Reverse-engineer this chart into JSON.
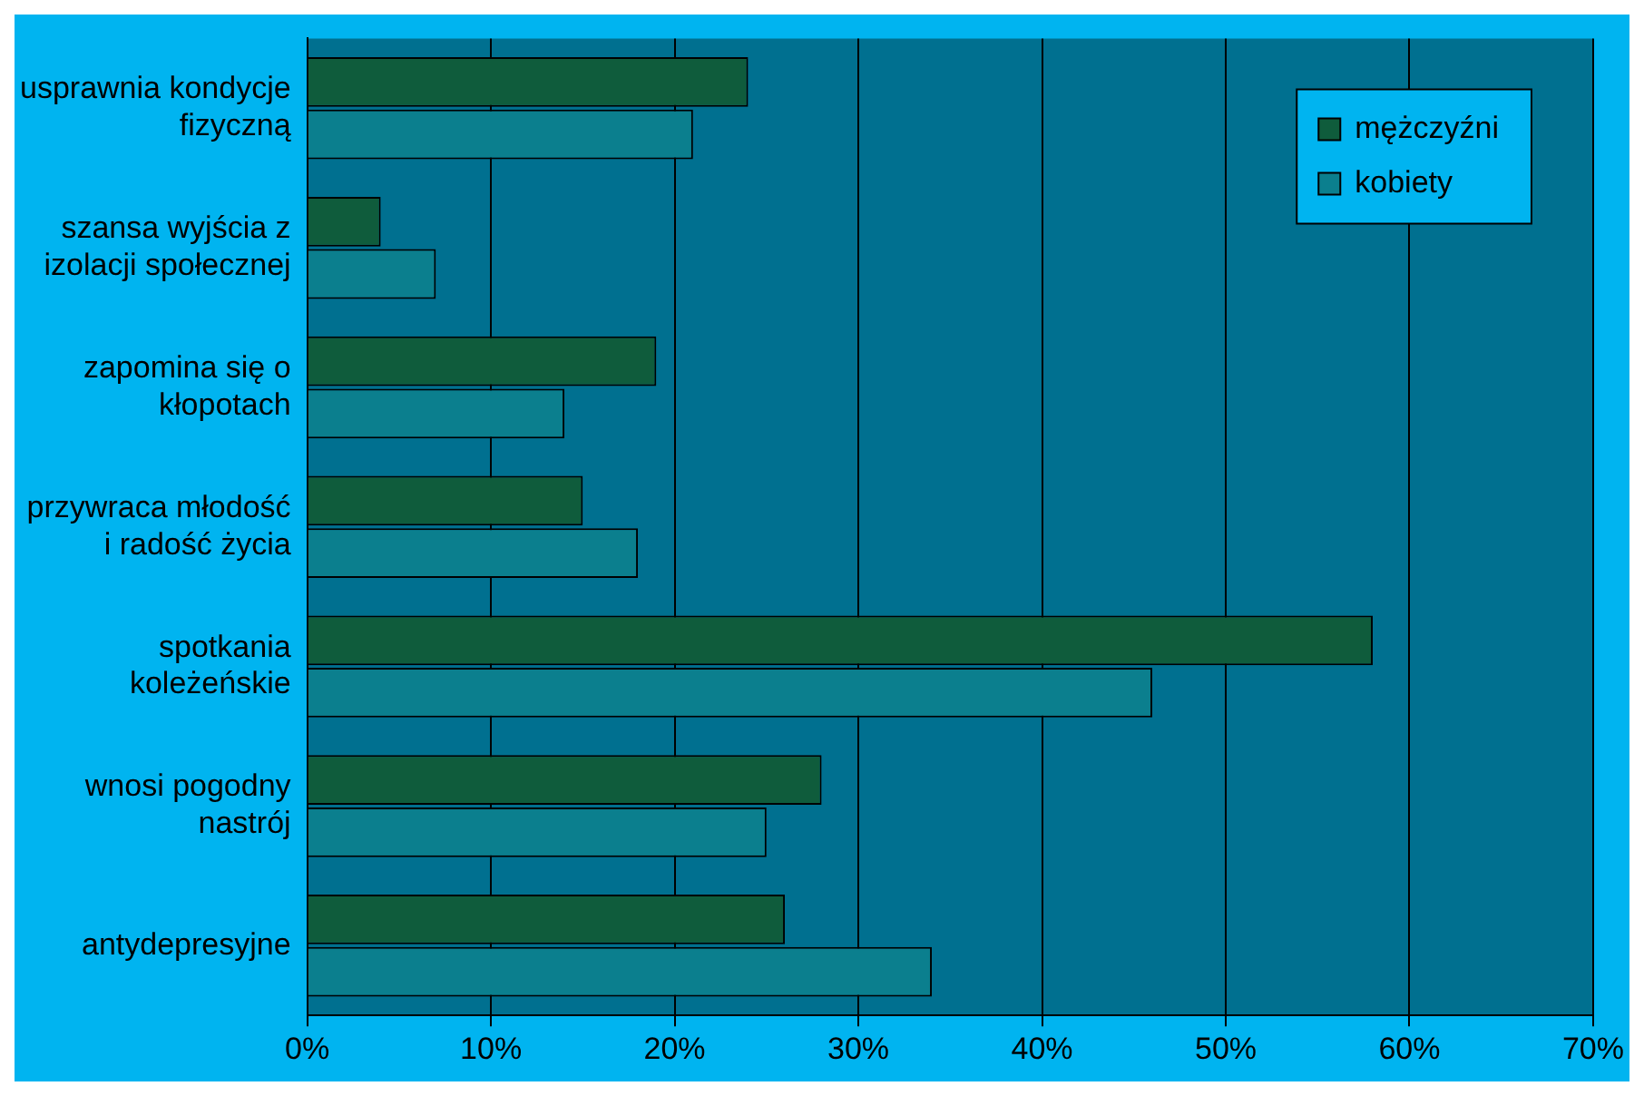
{
  "chart_data": {
    "type": "bar",
    "orientation": "horizontal",
    "categories": [
      "usprawnia kondycje\nfizyczną",
      "szansa wyjścia z\nizolacji społecznej",
      "zapomina się o\nkłopotach",
      "przywraca młodość\ni radość życia",
      "spotkania\nkoleżeńskie",
      "wnosi pogodny\nnastrój",
      "antydepresyjne"
    ],
    "series": [
      {
        "name": "mężczyźni",
        "color": "#0f5c3c",
        "values": [
          24,
          4,
          19,
          15,
          58,
          28,
          26
        ]
      },
      {
        "name": "kobiety",
        "color": "#0b7f8e",
        "values": [
          21,
          7,
          14,
          18,
          46,
          25,
          34
        ]
      }
    ],
    "xlim": [
      0,
      70
    ],
    "xticks": [
      {
        "value": 0,
        "label": "0%"
      },
      {
        "value": 10,
        "label": "10%"
      },
      {
        "value": 20,
        "label": "20%"
      },
      {
        "value": 30,
        "label": "30%"
      },
      {
        "value": 40,
        "label": "40%"
      },
      {
        "value": 50,
        "label": "50%"
      },
      {
        "value": 60,
        "label": "60%"
      },
      {
        "value": 70,
        "label": "70%"
      }
    ],
    "grid": "x",
    "legend": "top right"
  }
}
